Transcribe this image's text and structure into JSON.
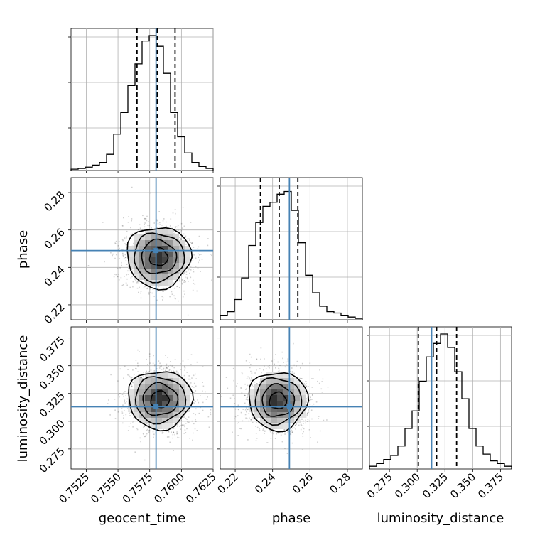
{
  "chart_data": {
    "type": "corner",
    "parameters": [
      "geocent_time",
      "phase",
      "luminosity_distance"
    ],
    "ranges": {
      "geocent_time": [
        0.7513,
        0.7625
      ],
      "phase": [
        0.212,
        0.288
      ],
      "luminosity_distance": [
        0.257,
        0.385
      ]
    },
    "ticks": {
      "geocent_time": {
        "values": [
          0.7525,
          0.755,
          0.7575,
          0.76,
          0.7625
        ],
        "labels": [
          "0.7525",
          "0.7550",
          "0.7575",
          "0.7600",
          "0.7625"
        ]
      },
      "phase": {
        "values": [
          0.22,
          0.24,
          0.26,
          0.28
        ],
        "labels": [
          "0.22",
          "0.24",
          "0.26",
          "0.28"
        ]
      },
      "luminosity_distance": {
        "values": [
          0.275,
          0.3,
          0.325,
          0.35,
          0.375
        ],
        "labels": [
          "0.275",
          "0.300",
          "0.325",
          "0.350",
          "0.375"
        ]
      }
    },
    "truths": {
      "geocent_time": 0.758,
      "phase": 0.249,
      "luminosity_distance": 0.313
    },
    "quantiles": {
      "geocent_time": [
        0.7565,
        0.7581,
        0.7595
      ],
      "phase": [
        0.2335,
        0.2435,
        0.2535
      ],
      "luminosity_distance": [
        0.301,
        0.3175,
        0.3355
      ]
    },
    "histograms": {
      "geocent_time": [
        0.01,
        0.015,
        0.025,
        0.04,
        0.06,
        0.12,
        0.27,
        0.43,
        0.63,
        0.79,
        0.96,
        1.0,
        0.92,
        0.72,
        0.43,
        0.25,
        0.13,
        0.06,
        0.03,
        0.015
      ],
      "phase": [
        0.03,
        0.06,
        0.15,
        0.31,
        0.55,
        0.72,
        0.84,
        0.87,
        0.93,
        0.95,
        0.81,
        0.57,
        0.33,
        0.2,
        0.1,
        0.06,
        0.05,
        0.03,
        0.02,
        0.01
      ],
      "luminosity_distance": [
        0.02,
        0.04,
        0.07,
        0.1,
        0.17,
        0.3,
        0.43,
        0.65,
        0.83,
        0.93,
        1.0,
        0.9,
        0.72,
        0.52,
        0.3,
        0.17,
        0.11,
        0.06,
        0.04,
        0.02
      ]
    },
    "density_2d": {
      "phase_vs_geocent_time": {
        "center": [
          0.7582,
          0.2455
        ],
        "sigma": [
          0.0012,
          0.0078
        ]
      },
      "luminosity_distance_vs_geocent_time": {
        "center": [
          0.7583,
          0.3195
        ],
        "sigma": [
          0.0012,
          0.0125
        ]
      },
      "luminosity_distance_vs_phase": {
        "center": [
          0.2428,
          0.3185
        ],
        "sigma": [
          0.0075,
          0.0125
        ]
      }
    },
    "grid": true,
    "colors": {
      "truth": "#4682b4",
      "hist": "#000000",
      "quantile": "#000000",
      "grid": "#b0b0b0"
    }
  }
}
